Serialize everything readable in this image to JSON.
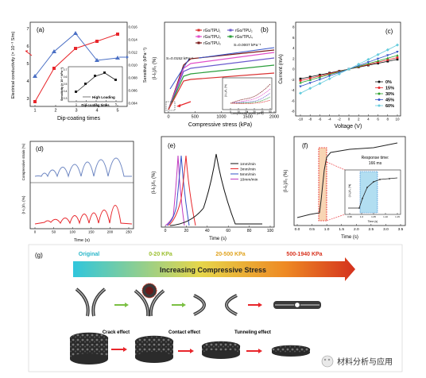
{
  "figure": {
    "watermark": "材料分析与应用",
    "panels": {
      "a": {
        "label": "(a)",
        "xlabel": "Dip-coating times",
        "ylabel_left": "Electrical conductivity (× 10⁻³ S/m)",
        "ylabel_right": "Sensitivity (kPa⁻¹)",
        "xticks": [
          "1",
          "2",
          "3",
          "4",
          "5"
        ],
        "yticks_left": [
          "3",
          "4",
          "5",
          "6",
          "7"
        ],
        "yticks_right": [
          "0.004",
          "0.006",
          "0.008",
          "0.010",
          "0.012",
          "0.014",
          "0.016"
        ],
        "inset": {
          "ylabel": "Sensitivity (× 10⁻³ kPa⁻¹)",
          "xlabel": "Dip-coating times",
          "legend": "High Loading",
          "xticks": [
            "1",
            "2",
            "3",
            "4",
            "5"
          ],
          "yticks": [
            "0.3",
            "0.4",
            "0.5",
            "0.6",
            "0.7"
          ]
        }
      },
      "b": {
        "label": "(b)",
        "xlabel": "Compressive stress (kPa)",
        "ylabel": "(I-I₀)/I₀ (%)",
        "xticks": [
          "0",
          "500",
          "1000",
          "1500",
          "2000"
        ],
        "legend": [
          "rGo/TPU₁",
          "rGo/TPU₂",
          "rGo/TPU₃",
          "rGo/TPU₄",
          "rGo/TPU₅"
        ],
        "ann_low": "S=0.0152 kPa⁻¹",
        "ann_high": "S=0.0007 kPa⁻¹",
        "inset": {
          "xlabel": "Compressive stress (kPa)",
          "ylabel": "(I-I₀)/I₀ (%)",
          "xticks": [
            "0",
            "10",
            "20",
            "30",
            "40",
            "50"
          ]
        }
      },
      "c": {
        "label": "(c)",
        "xlabel": "Voltage (V)",
        "ylabel": "Current (mA)",
        "xticks": [
          "-10",
          "-8",
          "-6",
          "-4",
          "-2",
          "0",
          "2",
          "4",
          "6",
          "8",
          "10"
        ],
        "yticks": [
          "-8",
          "-6",
          "-4",
          "-2",
          "0",
          "2",
          "4",
          "6",
          "8"
        ],
        "legend": [
          "0%",
          "15%",
          "30%",
          "45%",
          "60%"
        ]
      },
      "d": {
        "label": "(d)",
        "ylabel_top": "Compressive strain (%)",
        "ylabel_bottom": "(I-I₀)/I₀ (%)",
        "xlabel": "Time (s)",
        "xticks": [
          "0",
          "50",
          "100",
          "150",
          "200",
          "250"
        ]
      },
      "e": {
        "label": "(e)",
        "xlabel": "Time (s)",
        "ylabel": "(I-I₀)/I₀ (%)",
        "xticks": [
          "0",
          "20",
          "40",
          "60",
          "80",
          "100"
        ],
        "legend": [
          "1mm/min",
          "3mm/min",
          "5mm/min",
          "10mm/min"
        ]
      },
      "f": {
        "label": "(f)",
        "xlabel": "Time (s)",
        "ylabel": "(I-I₀)/I₀ (%)",
        "xticks": [
          "0.0",
          "0.5",
          "1.0",
          "1.5",
          "2.0",
          "2.5",
          "3.0",
          "3.5"
        ],
        "response_label": "Response time:",
        "response_value": "166 ms",
        "inset": {
          "xlabel": "Time (s)",
          "ylabel": "(I-I₀)/I₀ (%)",
          "xticks": [
            "0.95",
            "1.0",
            "1.05",
            "1.10",
            "1.15"
          ]
        }
      },
      "g": {
        "label": "(g)",
        "stages": [
          "Original",
          "0-20 KPa",
          "20-500 KPa",
          "500-1940 KPa"
        ],
        "arrow_text": "Increasing Compressive Stress",
        "effects": [
          "Crack effect",
          "Contact effect",
          "Tunneling effect"
        ]
      }
    },
    "colors": {
      "a_red": "#e8262b",
      "a_blue": "#4a6fc4",
      "b_series": [
        "#d93030",
        "#6a5acd",
        "#e14fc9",
        "#2a9d3b",
        "#7a1a1a"
      ],
      "c_series": [
        "#111111",
        "#e8262b",
        "#2ca02c",
        "#3553c7",
        "#66ccdd"
      ],
      "d_blue": "#6d86c2",
      "d_red": "#e8262b",
      "e_series": [
        "#111111",
        "#e8262b",
        "#3553c7",
        "#c03ac0"
      ],
      "g_original": "#28b6c9",
      "g_stage2": "#9bbf2e",
      "g_stage3": "#e0a21c",
      "g_stage4": "#d8331f"
    }
  }
}
